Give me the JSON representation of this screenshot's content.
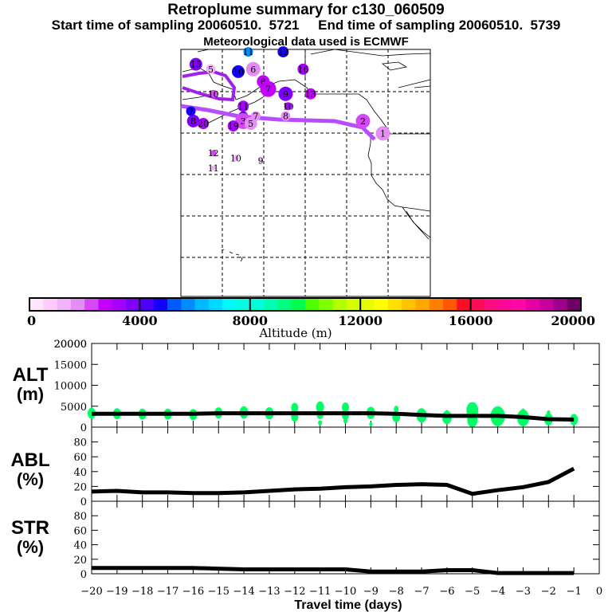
{
  "header": {
    "title": "Retroplume summary for c130_060509",
    "subtitle": "Start time of sampling 20060510.  5721     End time of sampling 20060510.  5739",
    "met_line": "Meteorological data used is ECMWF"
  },
  "colorbar": {
    "label": "Altitude (m)",
    "tick_labels": [
      "0",
      "4000",
      "8000",
      "12000",
      "16000",
      "20000"
    ],
    "range": [
      0,
      20000
    ],
    "colors": [
      "#ffe6fa",
      "#ffccfa",
      "#f2b3fa",
      "#e68cf5",
      "#d647f5",
      "#c400ff",
      "#a600ff",
      "#8000ff",
      "#4d00ff",
      "#1400ff",
      "#0059ff",
      "#008cff",
      "#00b8ff",
      "#00d9ff",
      "#00fafa",
      "#00ffe0",
      "#00ffd9",
      "#00ffb3",
      "#00ff80",
      "#00ff4d",
      "#4dff00",
      "#80ff00",
      "#b3ff00",
      "#d4ff00",
      "#e6ff00",
      "#ffff00",
      "#ffe000",
      "#ffc400",
      "#ffa600",
      "#ff8000",
      "#ff5900",
      "#ff0d26",
      "#ff0d59",
      "#ff0d80",
      "#ff0899",
      "#ff0aa6",
      "#e600a6",
      "#c700a0",
      "#9e008c",
      "#6e0066"
    ]
  },
  "map": {
    "labels": [
      {
        "t": "15",
        "c": "#8000ff",
        "lon": 0.06,
        "lat": 0.06,
        "r": 8
      },
      {
        "t": "5",
        "c": "#f2b3fa",
        "lon": 0.12,
        "lat": 0.08,
        "r": 6
      },
      {
        "t": "11",
        "c": "#008cff",
        "lon": 0.27,
        "lat": 0.01,
        "r": 6
      },
      {
        "t": "12",
        "c": "#1400ff",
        "lon": 0.41,
        "lat": 0.01,
        "r": 7
      },
      {
        "t": "10",
        "c": "#1400ff",
        "lon": 0.23,
        "lat": 0.09,
        "r": 8
      },
      {
        "t": "6",
        "c": "#e68cf5",
        "lon": 0.29,
        "lat": 0.08,
        "r": 9
      },
      {
        "t": "8",
        "c": "#c400ff",
        "lon": 0.33,
        "lat": 0.13,
        "r": 8
      },
      {
        "t": "7",
        "c": "#c400ff",
        "lon": 0.35,
        "lat": 0.16,
        "r": 10
      },
      {
        "t": "9",
        "c": "#8000ff",
        "lon": 0.42,
        "lat": 0.18,
        "r": 9
      },
      {
        "t": "16",
        "c": "#a600ff",
        "lon": 0.49,
        "lat": 0.08,
        "r": 7
      },
      {
        "t": "13",
        "c": "#c400ff",
        "lon": 0.52,
        "lat": 0.18,
        "r": 7
      },
      {
        "t": "11",
        "c": "#a600ff",
        "lon": 0.25,
        "lat": 0.23,
        "r": 7
      },
      {
        "t": "4",
        "c": "#4d00ff",
        "lon": 0.25,
        "lat": 0.27,
        "r": 6
      },
      {
        "t": "3",
        "c": "#d647f5",
        "lon": 0.25,
        "lat": 0.29,
        "r": 10
      },
      {
        "t": "5",
        "c": "#e68cf5",
        "lon": 0.28,
        "lat": 0.3,
        "r": 8
      },
      {
        "t": "7",
        "c": "#e68cf5",
        "lon": 0.3,
        "lat": 0.27,
        "r": 6
      },
      {
        "t": "19",
        "c": "#a600ff",
        "lon": 0.21,
        "lat": 0.31,
        "r": 7
      },
      {
        "t": "10",
        "c": "#a600ff",
        "lon": 0.43,
        "lat": 0.23,
        "r": 5
      },
      {
        "t": "8",
        "c": "#e68cf5",
        "lon": 0.42,
        "lat": 0.27,
        "r": 6
      },
      {
        "t": "2",
        "c": "#d647f5",
        "lon": 0.73,
        "lat": 0.29,
        "r": 9
      },
      {
        "t": "1",
        "c": "#e68cf5",
        "lon": 0.81,
        "lat": 0.34,
        "r": 9
      },
      {
        "t": "8",
        "c": "#8000ff",
        "lon": 0.05,
        "lat": 0.29,
        "r": 8
      },
      {
        "t": "20",
        "c": "#a600ff",
        "lon": 0.09,
        "lat": 0.3,
        "r": 7
      },
      {
        "t": "7",
        "c": "#1400ff",
        "lon": 0.04,
        "lat": 0.25,
        "r": 6
      },
      {
        "t": "10",
        "c": "#d647f5",
        "lon": 0.13,
        "lat": 0.18,
        "r": 5
      },
      {
        "t": "12",
        "c": "#d647f5",
        "lon": 0.13,
        "lat": 0.42,
        "r": 4
      },
      {
        "t": "10",
        "c": "#f2b3fa",
        "lon": 0.22,
        "lat": 0.44,
        "r": 4
      },
      {
        "t": "9",
        "c": "#f2b3fa",
        "lon": 0.32,
        "lat": 0.45,
        "r": 3
      },
      {
        "t": "11",
        "c": "#f2b3fa",
        "lon": 0.13,
        "lat": 0.48,
        "r": 3
      }
    ]
  },
  "chart_data": [
    {
      "type": "line",
      "title": "ALT",
      "ylabel": "ALT (m)",
      "xlabel": "Travel time (days)",
      "x": [
        -20,
        -19,
        -18,
        -17,
        -16,
        -15,
        -14,
        -13,
        -12,
        -11,
        -10,
        -9,
        -8,
        -7,
        -6,
        -5,
        -4,
        -3,
        -2,
        -1
      ],
      "ylim": [
        0,
        20000
      ],
      "yticks": [
        "0",
        "5000",
        "10000",
        "15000",
        "20000"
      ],
      "series": [
        {
          "name": "mean altitude",
          "values": [
            3200,
            3200,
            3200,
            3200,
            3200,
            3300,
            3300,
            3300,
            3300,
            3300,
            3300,
            3300,
            3200,
            2900,
            2700,
            2700,
            2700,
            2400,
            1900,
            1800
          ]
        }
      ],
      "spread": [
        {
          "x": -20,
          "pts": [
            [
              3300,
              1.0
            ]
          ]
        },
        {
          "x": -19,
          "pts": [
            [
              3200,
              1.0
            ]
          ]
        },
        {
          "x": -18,
          "pts": [
            [
              3100,
              1.0
            ]
          ]
        },
        {
          "x": -17,
          "pts": [
            [
              3100,
              1.0
            ]
          ]
        },
        {
          "x": -16,
          "pts": [
            [
              3000,
              1.0
            ]
          ]
        },
        {
          "x": -15,
          "pts": [
            [
              3400,
              1.0
            ]
          ]
        },
        {
          "x": -14,
          "pts": [
            [
              3500,
              1.1
            ]
          ]
        },
        {
          "x": -13,
          "pts": [
            [
              3300,
              1.1
            ]
          ]
        },
        {
          "x": -12,
          "pts": [
            [
              4600,
              0.9
            ],
            [
              2500,
              0.9
            ]
          ]
        },
        {
          "x": -11,
          "pts": [
            [
              4800,
              1.0
            ],
            [
              3100,
              0.9
            ],
            [
              1000,
              0.5
            ]
          ]
        },
        {
          "x": -10,
          "pts": [
            [
              4700,
              0.9
            ],
            [
              2900,
              0.9
            ],
            [
              1500,
              0.5
            ]
          ]
        },
        {
          "x": -9,
          "pts": [
            [
              3400,
              1.1
            ],
            [
              700,
              0.4
            ]
          ]
        },
        {
          "x": -8,
          "pts": [
            [
              4300,
              0.6
            ],
            [
              2500,
              1.0
            ]
          ]
        },
        {
          "x": -7,
          "pts": [
            [
              2800,
              1.3
            ]
          ]
        },
        {
          "x": -6,
          "pts": [
            [
              3300,
              0.6
            ],
            [
              2300,
              1.2
            ]
          ]
        },
        {
          "x": -5,
          "pts": [
            [
              4000,
              1.5
            ],
            [
              1700,
              1.3
            ]
          ]
        },
        {
          "x": -4,
          "pts": [
            [
              2600,
              1.8
            ]
          ]
        },
        {
          "x": -3,
          "pts": [
            [
              3800,
              0.5
            ],
            [
              2200,
              1.5
            ]
          ]
        },
        {
          "x": -2,
          "pts": [
            [
              3500,
              0.4
            ],
            [
              1900,
              1.1
            ]
          ]
        },
        {
          "x": -1,
          "pts": [
            [
              1800,
              1.0
            ]
          ]
        }
      ]
    },
    {
      "type": "line",
      "title": "ABL",
      "ylabel": "ABL (%)",
      "x": [
        -20,
        -19,
        -18,
        -17,
        -16,
        -15,
        -14,
        -13,
        -12,
        -11,
        -10,
        -9,
        -8,
        -7,
        -6,
        -5,
        -4,
        -3,
        -2,
        -1
      ],
      "ylim": [
        0,
        100
      ],
      "yticks": [
        "0",
        "20",
        "40",
        "60",
        "80"
      ],
      "series": [
        {
          "name": "ABL fraction",
          "values": [
            13,
            14,
            12,
            12,
            11,
            11,
            12,
            14,
            16,
            17,
            19,
            20,
            22,
            23,
            22,
            10,
            15,
            19,
            26,
            44
          ]
        }
      ]
    },
    {
      "type": "line",
      "title": "STR",
      "ylabel": "STR (%)",
      "xlabel": "Travel time (days)",
      "x": [
        -20,
        -19,
        -18,
        -17,
        -16,
        -15,
        -14,
        -13,
        -12,
        -11,
        -10,
        -9,
        -8,
        -7,
        -6,
        -5,
        -4,
        -3,
        -2,
        -1
      ],
      "xticks": [
        "-20",
        "-19",
        "-18",
        "-17",
        "-16",
        "-15",
        "-14",
        "-13",
        "-12",
        "-11",
        "-10",
        "-9",
        "-8",
        "-7",
        "-6",
        "-5",
        "-4",
        "-3",
        "-2",
        "-1",
        "0"
      ],
      "ylim": [
        0,
        100
      ],
      "yticks": [
        "0",
        "20",
        "40",
        "60",
        "80"
      ],
      "series": [
        {
          "name": "stratospheric fraction",
          "values": [
            8,
            8,
            8,
            8,
            8,
            7,
            6,
            6,
            6,
            6,
            6,
            3,
            3,
            3,
            5,
            5,
            1,
            1,
            1,
            1
          ]
        }
      ]
    }
  ],
  "panels": {
    "alt": {
      "label1": "ALT",
      "label2": "(m)"
    },
    "abl": {
      "label1": "ABL",
      "label2": "(%)"
    },
    "str": {
      "label1": "STR",
      "label2": "(%)"
    }
  },
  "colors": {
    "mean_line": "#000000",
    "spread_dots": "#00ff66",
    "trajectory": "#b84dff"
  }
}
